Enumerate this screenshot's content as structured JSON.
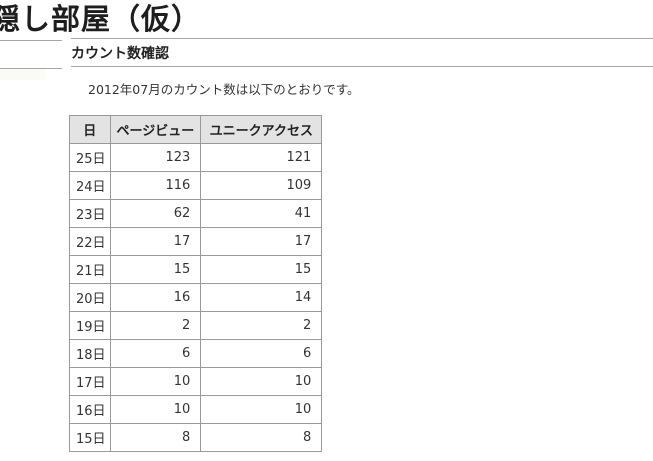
{
  "page": {
    "title": "隠し部屋（仮）"
  },
  "section": {
    "heading": "カウント数確認"
  },
  "main": {
    "intro": "2012年07月のカウント数は以下のとおりです。"
  },
  "table": {
    "headers": {
      "day": "日",
      "pageviews": "ページビュー",
      "unique": "ユニークアクセス"
    },
    "rows": [
      {
        "day": "25日",
        "pv": "123",
        "ua": "121"
      },
      {
        "day": "24日",
        "pv": "116",
        "ua": "109"
      },
      {
        "day": "23日",
        "pv": "62",
        "ua": "41"
      },
      {
        "day": "22日",
        "pv": "17",
        "ua": "17"
      },
      {
        "day": "21日",
        "pv": "15",
        "ua": "15"
      },
      {
        "day": "20日",
        "pv": "16",
        "ua": "14"
      },
      {
        "day": "19日",
        "pv": "2",
        "ua": "2"
      },
      {
        "day": "18日",
        "pv": "6",
        "ua": "6"
      },
      {
        "day": "17日",
        "pv": "10",
        "ua": "10"
      },
      {
        "day": "16日",
        "pv": "10",
        "ua": "10"
      },
      {
        "day": "15日",
        "pv": "8",
        "ua": "8"
      }
    ]
  },
  "colors": {
    "table_header_bg": "#e3e3e3",
    "table_border": "#999999",
    "rule": "#a6a6a6",
    "text": "#333333",
    "title_text": "#1e1e1e"
  }
}
